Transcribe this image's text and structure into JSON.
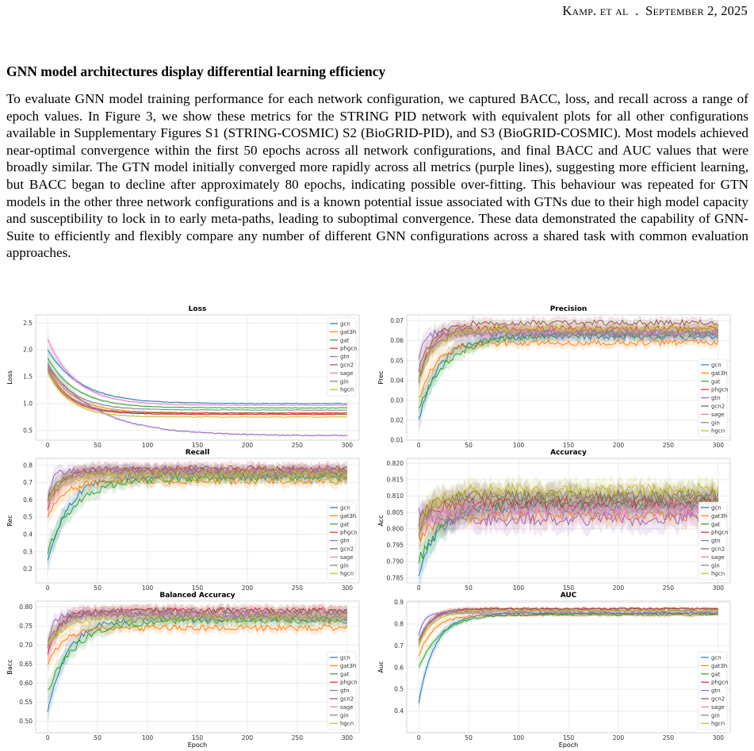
{
  "header": {
    "running_head_prefix": "Kamp. et al",
    "running_head_date": "September 2, 2025"
  },
  "section": {
    "title": "GNN model architectures display differential learning efficiency",
    "paragraph": "To evaluate GNN model training performance for each network configuration, we captured BACC, loss, and recall across a range of epoch values. In Figure 3, we show these metrics for the STRING PID network with equivalent plots for all other configurations available in Supplementary Figures S1 (STRING-COSMIC) S2 (BioGRID-PID), and S3 (BioGRID-COSMIC). Most models achieved near-optimal convergence within the first 50 epochs across all network configurations, and final BACC and AUC values that were broadly similar. The GTN model initially converged more rapidly across all metrics (purple lines), suggesting more efficient learning, but BACC began to decline after approximately 80 epochs, indicating possible over-fitting. This behaviour was repeated for GTN models in the other three network configurations and is a known potential issue associated with GTNs due to their high model capacity and susceptibility to lock in to early meta-paths, leading to suboptimal convergence. These data demonstrated the capability of GNN-Suite to efficiently and flexibly compare any number of different GNN configurations across a shared task with common evaluation approaches."
  },
  "models": [
    {
      "name": "gcn",
      "color": "#1f77b4"
    },
    {
      "name": "gat3h",
      "color": "#ff7f0e"
    },
    {
      "name": "gat",
      "color": "#2ca02c"
    },
    {
      "name": "phgcn",
      "color": "#d62728"
    },
    {
      "name": "gtn",
      "color": "#9467bd"
    },
    {
      "name": "gcn2",
      "color": "#8c564b"
    },
    {
      "name": "sage",
      "color": "#e377c2"
    },
    {
      "name": "gin",
      "color": "#7f7f7f"
    },
    {
      "name": "hgcn",
      "color": "#bcbd22"
    }
  ],
  "chart_data": [
    {
      "type": "line",
      "title": "Loss",
      "ylabel": "Loss",
      "xlabel": "",
      "x_range": [
        0,
        300
      ],
      "ylim": [
        0.32,
        2.65
      ],
      "xticks": [
        0,
        50,
        100,
        150,
        200,
        250,
        300
      ],
      "yticks": [
        0.5,
        1.0,
        1.5,
        2.0,
        2.5
      ],
      "ytick_labels": [
        "0.5",
        "1.0",
        "1.5",
        "2.0",
        "2.5"
      ],
      "legend": "top-right",
      "grid": true,
      "series": [
        {
          "name": "gcn",
          "start": 2.0,
          "final": 1.0,
          "rate": 0.03,
          "noise": 0.005
        },
        {
          "name": "gat3h",
          "start": 1.7,
          "final": 0.83,
          "rate": 0.04,
          "noise": 0.005
        },
        {
          "name": "gat",
          "start": 1.85,
          "final": 0.92,
          "rate": 0.035,
          "noise": 0.005
        },
        {
          "name": "phgcn",
          "start": 1.6,
          "final": 0.8,
          "rate": 0.045,
          "noise": 0.005
        },
        {
          "name": "gtn",
          "start": 1.7,
          "final": 0.4,
          "rate": 0.02,
          "noise": 0.01
        },
        {
          "name": "gcn2",
          "start": 1.65,
          "final": 0.82,
          "rate": 0.045,
          "noise": 0.005
        },
        {
          "name": "sage",
          "start": 2.2,
          "final": 0.97,
          "rate": 0.035,
          "noise": 0.005
        },
        {
          "name": "gin",
          "start": 1.75,
          "final": 0.88,
          "rate": 0.04,
          "noise": 0.005
        },
        {
          "name": "hgcn",
          "start": 1.6,
          "final": 0.75,
          "rate": 0.045,
          "noise": 0.005
        }
      ]
    },
    {
      "type": "line",
      "title": "Precision",
      "ylabel": "Prec",
      "xlabel": "",
      "x_range": [
        0,
        300
      ],
      "ylim": [
        0.01,
        0.073
      ],
      "xticks": [
        0,
        50,
        100,
        150,
        200,
        250,
        300
      ],
      "yticks": [
        0.01,
        0.02,
        0.03,
        0.04,
        0.05,
        0.06,
        0.07
      ],
      "ytick_labels": [
        "0.01",
        "0.02",
        "0.03",
        "0.04",
        "0.05",
        "0.06",
        "0.07"
      ],
      "legend": "bottom-right",
      "grid": true,
      "series": [
        {
          "name": "gcn",
          "start": 0.02,
          "final": 0.062,
          "rate": 0.05,
          "noise": 0.0015
        },
        {
          "name": "gat3h",
          "start": 0.03,
          "final": 0.059,
          "rate": 0.06,
          "noise": 0.0015
        },
        {
          "name": "gat",
          "start": 0.025,
          "final": 0.063,
          "rate": 0.035,
          "noise": 0.0015
        },
        {
          "name": "phgcn",
          "start": 0.04,
          "final": 0.066,
          "rate": 0.08,
          "noise": 0.0015
        },
        {
          "name": "gtn",
          "start": 0.05,
          "final": 0.064,
          "rate": 0.2,
          "noise": 0.002
        },
        {
          "name": "gcn2",
          "start": 0.045,
          "final": 0.069,
          "rate": 0.07,
          "noise": 0.0015
        },
        {
          "name": "sage",
          "start": 0.04,
          "final": 0.064,
          "rate": 0.08,
          "noise": 0.0015
        },
        {
          "name": "gin",
          "start": 0.04,
          "final": 0.064,
          "rate": 0.08,
          "noise": 0.0015
        },
        {
          "name": "hgcn",
          "start": 0.04,
          "final": 0.066,
          "rate": 0.06,
          "noise": 0.0015
        }
      ]
    },
    {
      "type": "line",
      "title": "Recall",
      "ylabel": "Rec",
      "xlabel": "",
      "x_range": [
        0,
        300
      ],
      "ylim": [
        0.12,
        0.84
      ],
      "xticks": [
        0,
        50,
        100,
        150,
        200,
        250,
        300
      ],
      "yticks": [
        0.2,
        0.3,
        0.4,
        0.5,
        0.6,
        0.7,
        0.8
      ],
      "ytick_labels": [
        "0.2",
        "0.3",
        "0.4",
        "0.5",
        "0.6",
        "0.7",
        "0.8"
      ],
      "legend": "bottom-right",
      "grid": true,
      "series": [
        {
          "name": "gcn",
          "start": 0.23,
          "final": 0.74,
          "rate": 0.05,
          "noise": 0.02
        },
        {
          "name": "gat3h",
          "start": 0.5,
          "final": 0.71,
          "rate": 0.06,
          "noise": 0.02
        },
        {
          "name": "gat",
          "start": 0.3,
          "final": 0.73,
          "rate": 0.035,
          "noise": 0.02
        },
        {
          "name": "phgcn",
          "start": 0.55,
          "final": 0.77,
          "rate": 0.08,
          "noise": 0.02
        },
        {
          "name": "gtn",
          "start": 0.6,
          "final": 0.77,
          "rate": 0.2,
          "noise": 0.02
        },
        {
          "name": "gcn2",
          "start": 0.6,
          "final": 0.78,
          "rate": 0.07,
          "noise": 0.02
        },
        {
          "name": "sage",
          "start": 0.55,
          "final": 0.76,
          "rate": 0.08,
          "noise": 0.02
        },
        {
          "name": "gin",
          "start": 0.6,
          "final": 0.76,
          "rate": 0.08,
          "noise": 0.02
        },
        {
          "name": "hgcn",
          "start": 0.6,
          "final": 0.75,
          "rate": 0.06,
          "noise": 0.02
        }
      ]
    },
    {
      "type": "line",
      "title": "Accuracy",
      "ylabel": "Acc",
      "xlabel": "",
      "x_range": [
        0,
        300
      ],
      "ylim": [
        0.7835,
        0.8215
      ],
      "xticks": [
        0,
        50,
        100,
        150,
        200,
        250,
        300
      ],
      "yticks": [
        0.785,
        0.79,
        0.795,
        0.8,
        0.805,
        0.81,
        0.815,
        0.82
      ],
      "ytick_labels": [
        "0.785",
        "0.790",
        "0.795",
        "0.800",
        "0.805",
        "0.810",
        "0.815",
        "0.820"
      ],
      "legend": "bottom-right",
      "grid": true,
      "series": [
        {
          "name": "gcn",
          "start": 0.786,
          "final": 0.807,
          "rate": 0.05,
          "noise": 0.0018
        },
        {
          "name": "gat3h",
          "start": 0.797,
          "final": 0.804,
          "rate": 0.06,
          "noise": 0.0018
        },
        {
          "name": "gat",
          "start": 0.79,
          "final": 0.808,
          "rate": 0.04,
          "noise": 0.0018
        },
        {
          "name": "phgcn",
          "start": 0.8,
          "final": 0.808,
          "rate": 0.08,
          "noise": 0.0018
        },
        {
          "name": "gtn",
          "start": 0.805,
          "final": 0.803,
          "rate": 0.2,
          "noise": 0.0022
        },
        {
          "name": "gcn2",
          "start": 0.802,
          "final": 0.81,
          "rate": 0.07,
          "noise": 0.0018
        },
        {
          "name": "sage",
          "start": 0.8,
          "final": 0.806,
          "rate": 0.08,
          "noise": 0.0018
        },
        {
          "name": "gin",
          "start": 0.8,
          "final": 0.81,
          "rate": 0.08,
          "noise": 0.0022
        },
        {
          "name": "hgcn",
          "start": 0.801,
          "final": 0.812,
          "rate": 0.06,
          "noise": 0.0018
        }
      ]
    },
    {
      "type": "line",
      "title": "Balanced Accuracy",
      "ylabel": "Bacc",
      "xlabel": "Epoch",
      "x_range": [
        0,
        300
      ],
      "ylim": [
        0.47,
        0.815
      ],
      "xticks": [
        0,
        50,
        100,
        150,
        200,
        250,
        300
      ],
      "yticks": [
        0.5,
        0.55,
        0.6,
        0.65,
        0.7,
        0.75,
        0.8
      ],
      "ytick_labels": [
        "0.50",
        "0.55",
        "0.60",
        "0.65",
        "0.70",
        "0.75",
        "0.80"
      ],
      "legend": "bottom-right",
      "grid": true,
      "series": [
        {
          "name": "gcn",
          "start": 0.52,
          "final": 0.77,
          "rate": 0.05,
          "noise": 0.008
        },
        {
          "name": "gat3h",
          "start": 0.65,
          "final": 0.745,
          "rate": 0.06,
          "noise": 0.008
        },
        {
          "name": "gat",
          "start": 0.58,
          "final": 0.765,
          "rate": 0.035,
          "noise": 0.008
        },
        {
          "name": "phgcn",
          "start": 0.68,
          "final": 0.79,
          "rate": 0.08,
          "noise": 0.008
        },
        {
          "name": "gtn",
          "start": 0.7,
          "final": 0.78,
          "rate": 0.2,
          "noise": 0.008
        },
        {
          "name": "gcn2",
          "start": 0.7,
          "final": 0.79,
          "rate": 0.07,
          "noise": 0.008
        },
        {
          "name": "sage",
          "start": 0.68,
          "final": 0.78,
          "rate": 0.08,
          "noise": 0.008
        },
        {
          "name": "gin",
          "start": 0.7,
          "final": 0.78,
          "rate": 0.08,
          "noise": 0.008
        },
        {
          "name": "hgcn",
          "start": 0.7,
          "final": 0.77,
          "rate": 0.06,
          "noise": 0.008
        }
      ]
    },
    {
      "type": "line",
      "title": "AUC",
      "ylabel": "Auc",
      "xlabel": "Epoch",
      "x_range": [
        0,
        300
      ],
      "ylim": [
        0.3,
        0.905
      ],
      "xticks": [
        0,
        50,
        100,
        150,
        200,
        250,
        300
      ],
      "yticks": [
        0.4,
        0.5,
        0.6,
        0.7,
        0.8,
        0.9
      ],
      "ytick_labels": [
        "0.4",
        "0.5",
        "0.6",
        "0.7",
        "0.8",
        "0.9"
      ],
      "legend": "bottom-right",
      "grid": true,
      "series": [
        {
          "name": "gcn",
          "start": 0.44,
          "final": 0.85,
          "rate": 0.06,
          "noise": 0.004
        },
        {
          "name": "gat3h",
          "start": 0.65,
          "final": 0.84,
          "rate": 0.07,
          "noise": 0.004
        },
        {
          "name": "gat",
          "start": 0.6,
          "final": 0.845,
          "rate": 0.045,
          "noise": 0.004
        },
        {
          "name": "phgcn",
          "start": 0.7,
          "final": 0.87,
          "rate": 0.09,
          "noise": 0.004
        },
        {
          "name": "gtn",
          "start": 0.75,
          "final": 0.85,
          "rate": 0.2,
          "noise": 0.004
        },
        {
          "name": "gcn2",
          "start": 0.72,
          "final": 0.87,
          "rate": 0.08,
          "noise": 0.004
        },
        {
          "name": "sage",
          "start": 0.7,
          "final": 0.86,
          "rate": 0.09,
          "noise": 0.004
        },
        {
          "name": "gin",
          "start": 0.72,
          "final": 0.86,
          "rate": 0.09,
          "noise": 0.004
        },
        {
          "name": "hgcn",
          "start": 0.7,
          "final": 0.86,
          "rate": 0.07,
          "noise": 0.004
        }
      ]
    }
  ]
}
